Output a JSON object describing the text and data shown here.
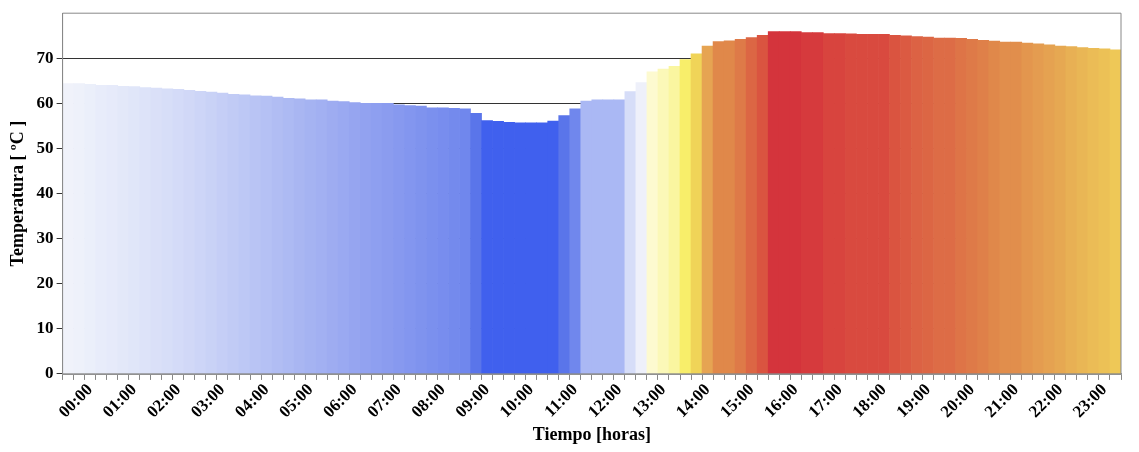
{
  "chart_data": {
    "type": "bar",
    "xlabel": "Tiempo [horas]",
    "ylabel": "Temperatura [ ºC ]",
    "categories": [
      null,
      null,
      "00:00",
      null,
      null,
      null,
      "01:00",
      null,
      null,
      null,
      "02:00",
      null,
      null,
      null,
      "03:00",
      null,
      null,
      null,
      "04:00",
      null,
      null,
      null,
      "05:00",
      null,
      null,
      null,
      "06:00",
      null,
      null,
      null,
      "07:00",
      null,
      null,
      null,
      "08:00",
      null,
      null,
      null,
      "09:00",
      null,
      null,
      null,
      "10:00",
      null,
      null,
      null,
      "11:00",
      null,
      null,
      null,
      "12:00",
      null,
      null,
      null,
      "13:00",
      null,
      null,
      null,
      "14:00",
      null,
      null,
      null,
      "15:00",
      null,
      null,
      null,
      "16:00",
      null,
      null,
      null,
      "17:00",
      null,
      null,
      null,
      "18:00",
      null,
      null,
      null,
      "19:00",
      null,
      null,
      null,
      "20:00",
      null,
      null,
      null,
      "21:00",
      null,
      null,
      null,
      "22:00",
      null,
      null,
      null,
      "23:00",
      null
    ],
    "values": [
      64.4,
      64.4,
      64.2,
      64.0,
      64.0,
      63.8,
      63.7,
      63.5,
      63.4,
      63.2,
      63.1,
      62.9,
      62.7,
      62.5,
      62.3,
      62.0,
      61.9,
      61.7,
      61.6,
      61.4,
      61.1,
      61.0,
      60.8,
      60.8,
      60.5,
      60.4,
      60.2,
      60.0,
      60.0,
      60.0,
      59.7,
      59.5,
      59.4,
      59.0,
      59.0,
      58.9,
      58.8,
      57.8,
      56.2,
      56.0,
      55.8,
      55.7,
      55.7,
      55.7,
      56.1,
      57.3,
      58.8,
      60.5,
      60.8,
      60.8,
      60.8,
      62.6,
      64.6,
      67.0,
      67.6,
      68.2,
      69.7,
      71.0,
      72.7,
      73.7,
      73.9,
      74.2,
      74.6,
      75.1,
      75.9,
      75.9,
      75.9,
      75.7,
      75.7,
      75.5,
      75.5,
      75.4,
      75.3,
      75.3,
      75.3,
      75.1,
      75.0,
      74.8,
      74.7,
      74.5,
      74.5,
      74.4,
      74.2,
      74.0,
      73.8,
      73.6,
      73.6,
      73.4,
      73.2,
      73.0,
      72.7,
      72.6,
      72.4,
      72.2,
      72.1,
      71.9
    ],
    "colors": [
      "#f0f2fa",
      "#eef1fa",
      "#ebeffa",
      "#e8ecfa",
      "#e6eafa",
      "#e3e8f9",
      "#e0e6f9",
      "#dde3f9",
      "#dae0f8",
      "#d7def8",
      "#d4dbf8",
      "#d1d8f7",
      "#cdd5f7",
      "#c9d2f6",
      "#c5cef6",
      "#c1cbf5",
      "#bdc8f5",
      "#b9c4f4",
      "#b5c1f4",
      "#b1bdf3",
      "#adbaf3",
      "#a9b6f2",
      "#a5b3f2",
      "#a2b0f2",
      "#9eacf1",
      "#9aa9f1",
      "#96a5f0",
      "#92a2f0",
      "#8e9ff0",
      "#8b9cef",
      "#8799ef",
      "#8396ef",
      "#7f93ee",
      "#7b90ee",
      "#788dee",
      "#748aed",
      "#7087ed",
      "#5a75ea",
      "#4060ee",
      "#4060ee",
      "#4060ee",
      "#4060ee",
      "#4060ee",
      "#4060ee",
      "#4060ee",
      "#5a75ea",
      "#7087ed",
      "#aab8f4",
      "#aab8f4",
      "#aab8f4",
      "#aab8f4",
      "#d6ddf8",
      "#eef0fa",
      "#fdfad0",
      "#fbf8b8",
      "#faf6a0",
      "#f8ee6a",
      "#f0d458",
      "#e6a452",
      "#e0884a",
      "#e0884a",
      "#de7a48",
      "#dc6644",
      "#da5440",
      "#d4343c",
      "#d4343c",
      "#d4343c",
      "#d63a3d",
      "#d63a3d",
      "#d8443e",
      "#d8443e",
      "#d94a3f",
      "#d94a3f",
      "#d94a3f",
      "#d94a3f",
      "#da5440",
      "#db5a42",
      "#dc6244",
      "#dc6644",
      "#dd6c46",
      "#dd6c46",
      "#de7447",
      "#de7a48",
      "#df8049",
      "#e0884a",
      "#e18e4c",
      "#e18e4c",
      "#e3964e",
      "#e49c50",
      "#e5a251",
      "#e6a852",
      "#e8b054",
      "#e9b655",
      "#ebbc56",
      "#ecc156",
      "#eec857"
    ],
    "ylim": [
      0,
      80
    ],
    "yticks": [
      0,
      10,
      20,
      30,
      40,
      50,
      60,
      70
    ],
    "grid": "y",
    "legend": false
  }
}
